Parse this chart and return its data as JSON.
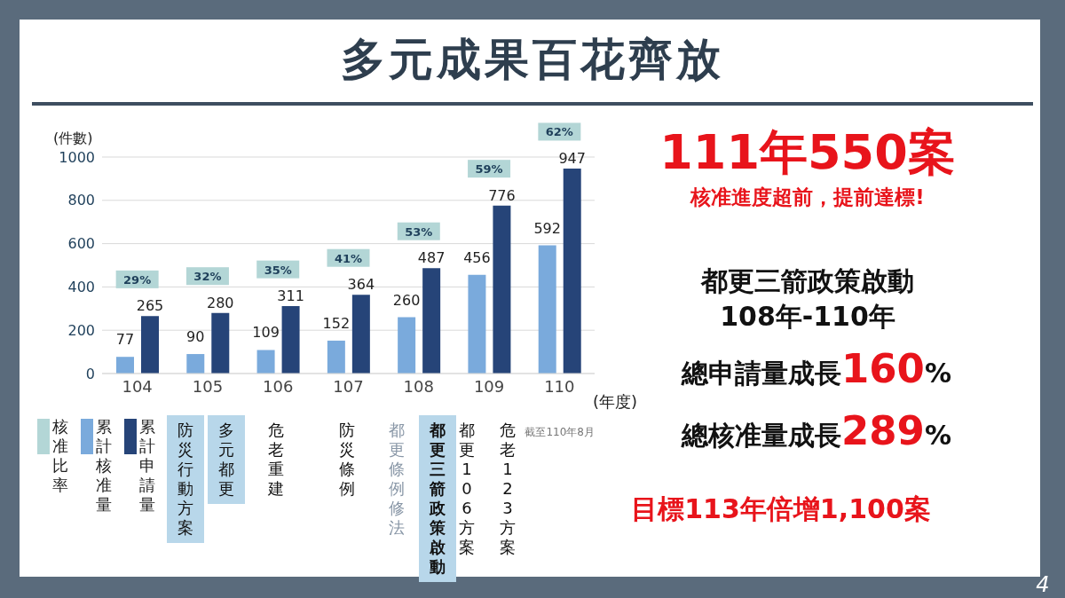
{
  "chart_data": {
    "type": "bar",
    "title": "多元成果百花齊放",
    "xlabel": "(年度)",
    "ylabel": "(件數)",
    "categories": [
      "104",
      "105",
      "106",
      "107",
      "108",
      "109",
      "110"
    ],
    "series": [
      {
        "name": "累計核准量",
        "color": "#7aaadc",
        "values": [
          77,
          90,
          109,
          152,
          260,
          456,
          592
        ]
      },
      {
        "name": "累計申請量",
        "color": "#264478",
        "values": [
          265,
          280,
          311,
          364,
          487,
          776,
          947
        ]
      }
    ],
    "ylim": [
      0,
      1000
    ],
    "yticks": [
      0,
      200,
      400,
      600,
      800,
      1000
    ],
    "grid": "y",
    "data_labels": true,
    "legend": "bottom left",
    "annotations": [
      "111年550案",
      "核准進度超前，提前達標!",
      "都更三箭政策啟動",
      "108年-110年",
      "總申請量成長160%",
      "總核准量成長289%",
      "目標113年倍增1,100案",
      "截至110年8月",
      "核准比率",
      "4",
      "29%",
      "32%",
      "35%",
      "41%",
      "53%",
      "59%",
      "62%",
      "防災行動方案",
      "多元都更",
      "危老重建",
      "防災條例",
      "都更條例修法",
      "都更三箭政策啟動",
      "都更106方案",
      "危老123方案"
    ]
  }
}
